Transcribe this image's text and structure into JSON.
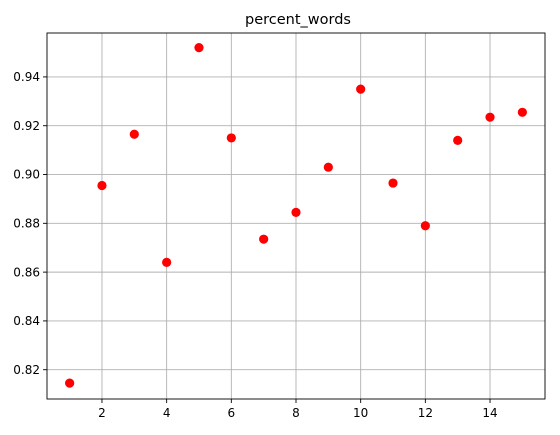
{
  "chart_data": {
    "type": "scatter",
    "title": "percent_words",
    "xlabel": "",
    "ylabel": "",
    "xlim": [
      0.3,
      15.7
    ],
    "ylim": [
      0.808,
      0.958
    ],
    "xticks": [
      2,
      4,
      6,
      8,
      10,
      12,
      14
    ],
    "xtick_labels": [
      "2",
      "4",
      "6",
      "8",
      "10",
      "12",
      "14"
    ],
    "yticks": [
      0.82,
      0.84,
      0.86,
      0.88,
      0.9,
      0.92,
      0.94
    ],
    "ytick_labels": [
      "0.82",
      "0.84",
      "0.86",
      "0.88",
      "0.90",
      "0.92",
      "0.94"
    ],
    "grid": true,
    "marker_color": "#ff0000",
    "series": [
      {
        "x": [
          1,
          2,
          3,
          4,
          5,
          6,
          7,
          8,
          9,
          10,
          11,
          12,
          13,
          14,
          15
        ],
        "y": [
          0.8145,
          0.8955,
          0.9165,
          0.864,
          0.952,
          0.915,
          0.8735,
          0.8845,
          0.903,
          0.935,
          0.8965,
          0.879,
          0.914,
          0.9235,
          0.9255
        ]
      }
    ]
  }
}
